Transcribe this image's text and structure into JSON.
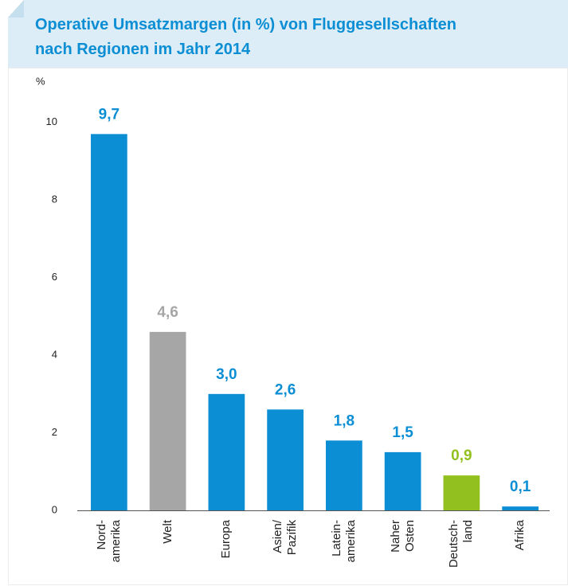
{
  "chart_data": {
    "type": "bar",
    "title": "Operative Umsatzmargen (in %) von Fluggesellschaften\nnach Regionen im Jahr 2014",
    "y_label": "%",
    "categories": [
      "Nord-\namerika",
      "Welt",
      "Europa",
      "Asien/\nPazifik",
      "Latein-\namerika",
      "Naher\nOsten",
      "Deutsch-\nland",
      "Afrika"
    ],
    "values": [
      9.7,
      4.6,
      3.0,
      2.6,
      1.8,
      1.5,
      0.9,
      0.1
    ],
    "value_labels": [
      "9,7",
      "4,6",
      "3,0",
      "2,6",
      "1,8",
      "1,5",
      "0,9",
      "0,1"
    ],
    "colors": [
      "#0b8ed4",
      "#a6a6a6",
      "#0b8ed4",
      "#0b8ed4",
      "#0b8ed4",
      "#0b8ed4",
      "#92c01f",
      "#0b8ed4"
    ],
    "ylim": [
      0,
      11
    ],
    "yticks": [
      0,
      2,
      4,
      6,
      8,
      10
    ],
    "grid": false
  }
}
